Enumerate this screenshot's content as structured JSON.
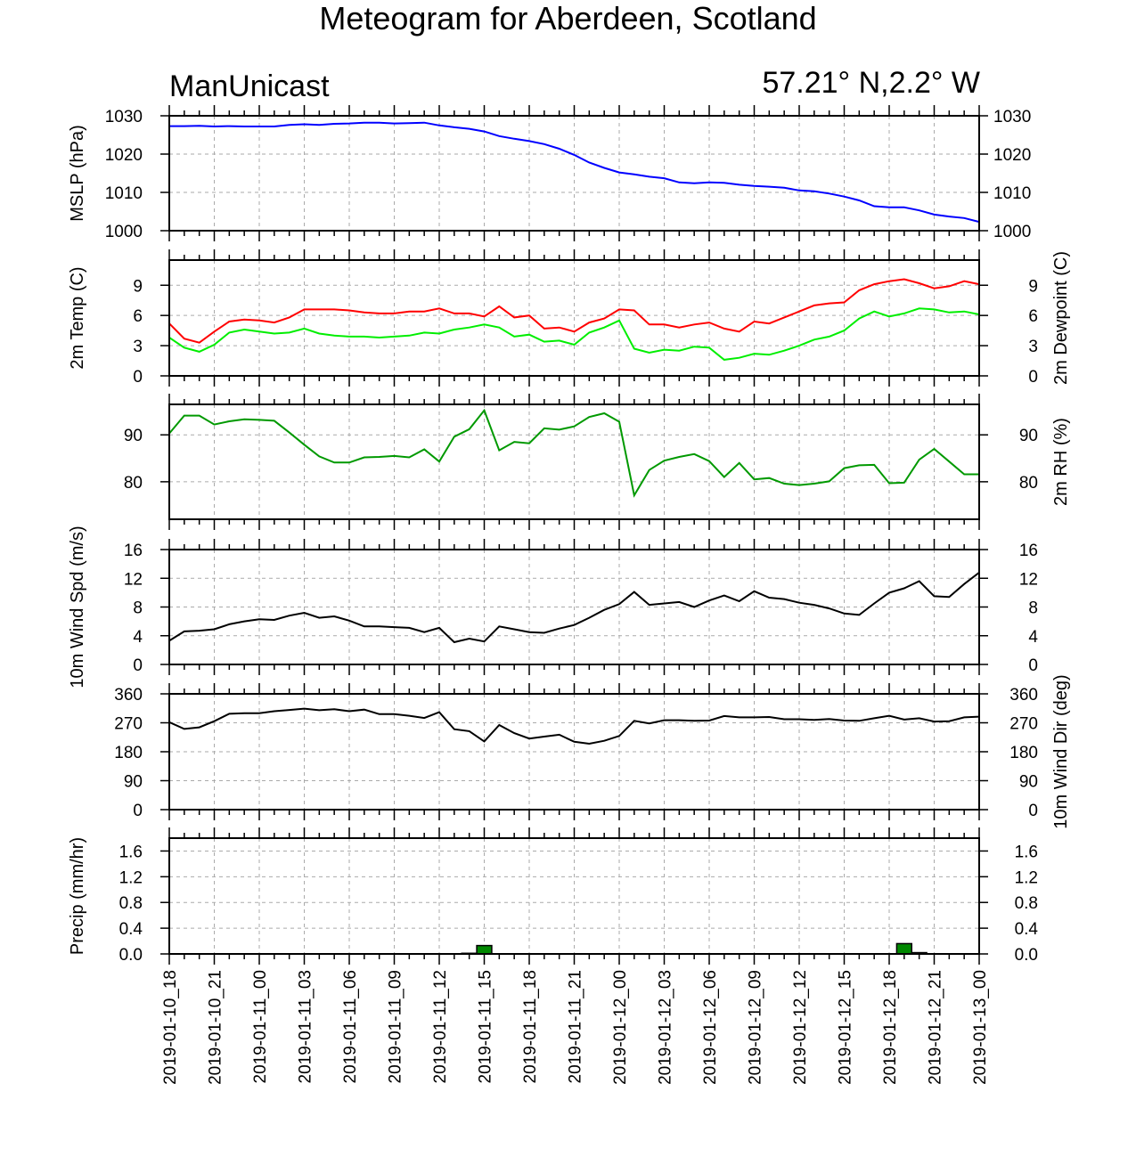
{
  "header": {
    "title": "Meteogram for Aberdeen, Scotland",
    "model": "ManUnicast",
    "location": "57.21° N,2.2° W"
  },
  "colors": {
    "mslp": "#0000ff",
    "temp": "#ff0000",
    "dewpoint": "#00ee00",
    "rh": "#009900",
    "wind_speed": "#000000",
    "wind_dir": "#000000",
    "precip_fill": "#008800",
    "grid": "#aaaaaa"
  },
  "chart_data": [
    {
      "type": "line",
      "id": "mslp",
      "ylabel_left": "MSLP (hPa)",
      "ylabel_right": "",
      "ylim": [
        1000,
        1030
      ],
      "yticks": [
        1000,
        1010,
        1020,
        1030
      ],
      "ytick_labels": [
        "1000",
        "1010",
        "1020",
        "1030"
      ],
      "right_ticks": true,
      "series": [
        {
          "color_key": "mslp",
          "values": [
            1027.3,
            1027.3,
            1027.4,
            1027.2,
            1027.3,
            1027.2,
            1027.2,
            1027.2,
            1027.6,
            1027.8,
            1027.6,
            1027.9,
            1028.0,
            1028.2,
            1028.2,
            1028.0,
            1028.1,
            1028.2,
            1027.5,
            1027.0,
            1026.6,
            1025.9,
            1024.7,
            1024.0,
            1023.4,
            1022.6,
            1021.4,
            1019.8,
            1017.8,
            1016.4,
            1015.2,
            1014.7,
            1014.1,
            1013.7,
            1012.6,
            1012.4,
            1012.6,
            1012.5,
            1012.0,
            1011.7,
            1011.5,
            1011.2,
            1010.5,
            1010.3,
            1009.7,
            1008.9,
            1007.9,
            1006.4,
            1006.1,
            1006.1,
            1005.3,
            1004.2,
            1003.7,
            1003.3,
            1002.3
          ]
        }
      ]
    },
    {
      "type": "line",
      "id": "temp",
      "ylabel_left": "2m Temp (C)",
      "ylabel_right": "2m Dewpoint (C)",
      "ylim": [
        0,
        11.5
      ],
      "yticks": [
        0,
        3,
        6,
        9
      ],
      "ytick_labels": [
        "0",
        "3",
        "6",
        "9"
      ],
      "series": [
        {
          "name": "2m Temp (C)",
          "color_key": "temp",
          "values": [
            5.2,
            3.7,
            3.3,
            4.4,
            5.4,
            5.6,
            5.5,
            5.3,
            5.8,
            6.6,
            6.6,
            6.6,
            6.5,
            6.3,
            6.2,
            6.2,
            6.4,
            6.4,
            6.7,
            6.2,
            6.2,
            5.9,
            6.9,
            5.8,
            6.0,
            4.7,
            4.8,
            4.4,
            5.3,
            5.7,
            6.6,
            6.5,
            5.1,
            5.1,
            4.8,
            5.1,
            5.3,
            4.7,
            4.4,
            5.4,
            5.2,
            5.8,
            6.4,
            7.0,
            7.2,
            7.3,
            8.5,
            9.1,
            9.4,
            9.6,
            9.2,
            8.7,
            8.9,
            9.4,
            9.1
          ]
        },
        {
          "name": "2m Dewpoint (C)",
          "color_key": "dewpoint",
          "values": [
            3.8,
            2.8,
            2.4,
            3.1,
            4.3,
            4.6,
            4.4,
            4.2,
            4.3,
            4.7,
            4.2,
            4.0,
            3.9,
            3.9,
            3.8,
            3.9,
            4.0,
            4.3,
            4.2,
            4.6,
            4.8,
            5.1,
            4.8,
            3.9,
            4.1,
            3.4,
            3.5,
            3.1,
            4.3,
            4.8,
            5.5,
            2.7,
            2.3,
            2.6,
            2.5,
            2.9,
            2.8,
            1.6,
            1.8,
            2.2,
            2.1,
            2.5,
            3.0,
            3.6,
            3.9,
            4.5,
            5.7,
            6.4,
            5.9,
            6.2,
            6.7,
            6.6,
            6.3,
            6.4,
            6.1
          ]
        }
      ]
    },
    {
      "type": "line",
      "id": "rh",
      "ylabel_left": "",
      "ylabel_right": "2m RH (%)",
      "ylim": [
        72,
        96.5
      ],
      "yticks": [
        80,
        90
      ],
      "ytick_labels": [
        "80",
        "90"
      ],
      "series": [
        {
          "name": "2m RH (%)",
          "color_key": "rh",
          "values": [
            90.3,
            94.1,
            94.1,
            92.2,
            92.9,
            93.3,
            93.2,
            93.0,
            90.5,
            87.9,
            85.4,
            84.1,
            84.1,
            85.2,
            85.3,
            85.5,
            85.2,
            86.9,
            84.3,
            89.6,
            91.2,
            95.2,
            86.7,
            88.5,
            88.2,
            91.4,
            91.1,
            91.8,
            93.8,
            94.6,
            92.8,
            77.1,
            82.5,
            84.5,
            85.3,
            85.9,
            84.4,
            81.0,
            84.0,
            80.5,
            80.8,
            79.6,
            79.3,
            79.6,
            80.1,
            82.9,
            83.5,
            83.6,
            79.7,
            79.8,
            84.7,
            87.0,
            84.3,
            81.6,
            81.6
          ]
        }
      ]
    },
    {
      "type": "line",
      "id": "wind_speed",
      "ylabel_left": "10m Wind Spd (m/s)",
      "ylabel_right": "",
      "ylim": [
        0,
        16
      ],
      "yticks": [
        0,
        4,
        8,
        12,
        16
      ],
      "ytick_labels": [
        "0",
        "4",
        "8",
        "12",
        "16"
      ],
      "series": [
        {
          "name": "10m Wind Spd (m/s)",
          "color_key": "wind_speed",
          "values": [
            3.3,
            4.6,
            4.7,
            4.9,
            5.6,
            6.0,
            6.3,
            6.2,
            6.8,
            7.2,
            6.5,
            6.7,
            6.1,
            5.3,
            5.3,
            5.2,
            5.1,
            4.5,
            5.1,
            3.1,
            3.6,
            3.2,
            5.3,
            4.9,
            4.5,
            4.4,
            5.0,
            5.5,
            6.5,
            7.6,
            8.4,
            10.1,
            8.3,
            8.5,
            8.7,
            8.0,
            8.9,
            9.6,
            8.8,
            10.2,
            9.3,
            9.1,
            8.6,
            8.3,
            7.8,
            7.1,
            6.9,
            8.5,
            10.0,
            10.6,
            11.6,
            9.5,
            9.4,
            11.2,
            12.8
          ]
        }
      ]
    },
    {
      "type": "line",
      "id": "wind_dir",
      "ylabel_left": "",
      "ylabel_right": "10m Wind Dir (deg)",
      "ylim": [
        0,
        360
      ],
      "yticks": [
        0,
        90,
        180,
        270,
        360
      ],
      "ytick_labels": [
        "0",
        "90",
        "180",
        "270",
        "360"
      ],
      "series": [
        {
          "name": "10m Wind Dir (deg)",
          "color_key": "wind_dir",
          "values": [
            272,
            251,
            256,
            275,
            298,
            300,
            300,
            306,
            310,
            314,
            309,
            312,
            306,
            311,
            297,
            297,
            292,
            285,
            303,
            250,
            244,
            212,
            263,
            238,
            221,
            227,
            233,
            211,
            205,
            214,
            229,
            276,
            268,
            278,
            278,
            276,
            277,
            291,
            287,
            287,
            288,
            281,
            281,
            279,
            282,
            277,
            276,
            284,
            292,
            280,
            284,
            274,
            275,
            287,
            289
          ]
        }
      ]
    },
    {
      "type": "bar",
      "id": "precip",
      "ylabel_left": "Precip (mm/hr)",
      "ylabel_right": "",
      "ylim": [
        0,
        1.8
      ],
      "yticks": [
        0,
        0.4,
        0.8,
        1.2,
        1.6
      ],
      "ytick_labels": [
        "0.0",
        "0.4",
        "0.8",
        "1.2",
        "1.6"
      ],
      "series": [
        {
          "name": "Precip (mm/hr)",
          "color_key": "precip_fill",
          "values": [
            0,
            0,
            0,
            0,
            0,
            0,
            0,
            0,
            0,
            0,
            0,
            0,
            0,
            0,
            0,
            0,
            0,
            0,
            0,
            0,
            0.01,
            0.13,
            0,
            0,
            0,
            0,
            0,
            0,
            0,
            0,
            0,
            0,
            0,
            0,
            0,
            0,
            0,
            0,
            0,
            0,
            0,
            0,
            0,
            0,
            0,
            0,
            0,
            0,
            0,
            0.16,
            0.02,
            0,
            0,
            0,
            0
          ]
        }
      ]
    }
  ],
  "x_axis": {
    "labels": [
      "2019-01-10_18",
      "2019-01-10_21",
      "2019-01-11_00",
      "2019-01-11_03",
      "2019-01-11_06",
      "2019-01-11_09",
      "2019-01-11_12",
      "2019-01-11_15",
      "2019-01-11_18",
      "2019-01-11_21",
      "2019-01-12_00",
      "2019-01-12_03",
      "2019-01-12_06",
      "2019-01-12_09",
      "2019-01-12_12",
      "2019-01-12_15",
      "2019-01-12_18",
      "2019-01-12_21",
      "2019-01-13_00"
    ],
    "points_per_label": 3
  }
}
